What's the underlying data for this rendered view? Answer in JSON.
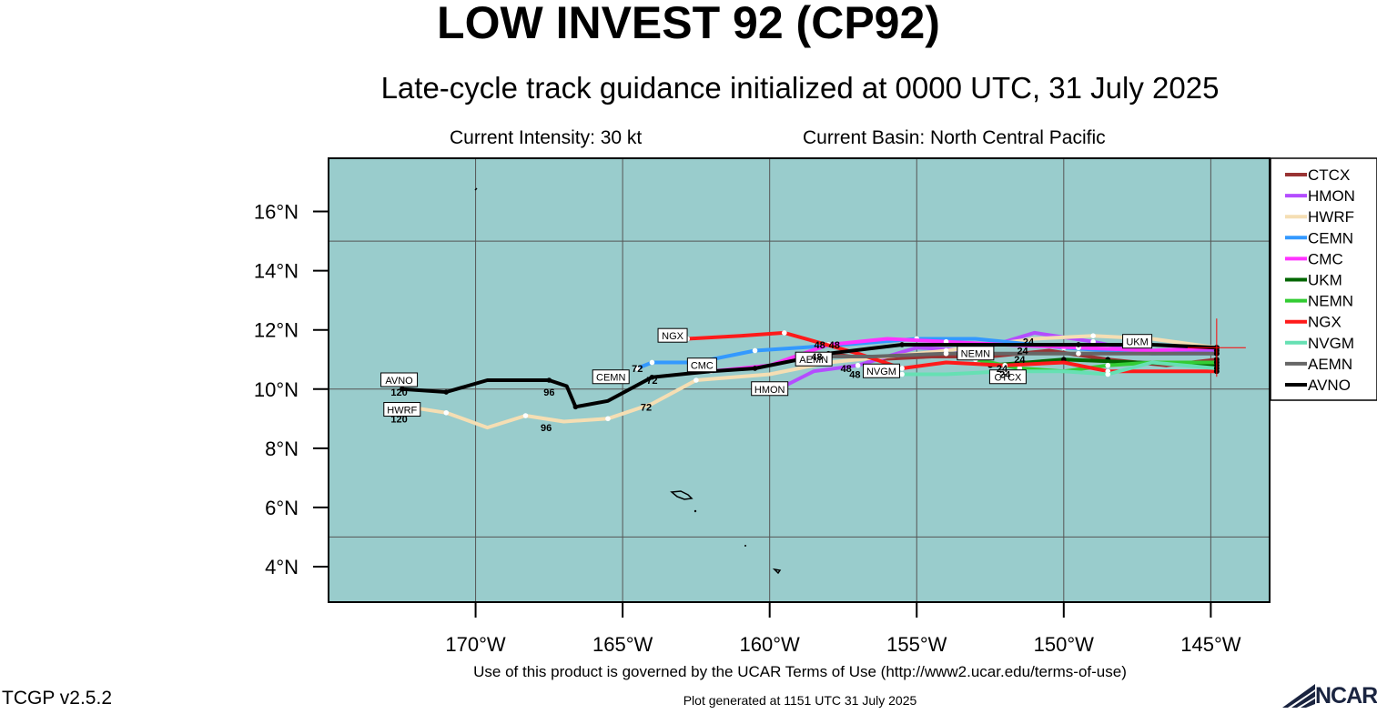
{
  "header": {
    "title": "LOW INVEST 92 (CP92)",
    "subtitle": "Late-cycle track guidance initialized at 0000 UTC, 31 July 2025",
    "intensity": "Current Intensity: 30 kt",
    "basin": "Current Basin: North Central Pacific"
  },
  "footer": {
    "terms": "Use of this product is governed by the UCAR Terms of Use (http://www2.ucar.edu/terms-of-use)",
    "version": "TCGP v2.5.2",
    "generated": "Plot generated at 1151 UTC   31 July 2025",
    "logo_text": "NCAR"
  },
  "chart_data": {
    "type": "line",
    "xlim": [
      -175,
      -143
    ],
    "ylim": [
      2.8,
      17.8
    ],
    "x_ticks": [
      -170,
      -165,
      -160,
      -155,
      -150,
      -145
    ],
    "x_tick_labels": [
      "170°W",
      "165°W",
      "160°W",
      "155°W",
      "150°W",
      "145°W"
    ],
    "y_ticks": [
      4,
      6,
      8,
      10,
      12,
      14,
      16
    ],
    "y_tick_labels": [
      "4°N",
      "6°N",
      "8°N",
      "10°N",
      "12°N",
      "14°N",
      "16°N"
    ],
    "grid": true,
    "legend_position": "right",
    "ocean_color": "#99cccc",
    "initial_position": {
      "lon": -144.8,
      "lat": 11.4
    },
    "series": [
      {
        "name": "CTCX",
        "color": "#993333",
        "lon": [
          -144.8,
          -146.5,
          -148.5,
          -150.5,
          -152.5,
          -154.5,
          -156.5,
          -158.0
        ],
        "lat": [
          11.0,
          10.8,
          11.0,
          11.3,
          11.1,
          11.1,
          11.0,
          11.2
        ]
      },
      {
        "name": "HMON",
        "color": "#b44dff",
        "lon": [
          -144.8,
          -147.0,
          -149.0,
          -151.0,
          -153.0,
          -155.0,
          -157.0,
          -158.5,
          -159.5
        ],
        "lat": [
          11.3,
          11.2,
          11.6,
          11.9,
          11.3,
          11.4,
          10.8,
          10.6,
          10.1
        ]
      },
      {
        "name": "HWRF",
        "color": "#f5deb3",
        "lon": [
          -144.8,
          -147.0,
          -149.0,
          -151.0,
          -154.0,
          -156.0,
          -158.0,
          -160.0,
          -162.5,
          -164.0,
          -165.5,
          -167.0,
          -168.3,
          -169.6,
          -171.0,
          -172.3
        ],
        "lat": [
          11.4,
          11.7,
          11.8,
          11.7,
          11.3,
          11.1,
          10.9,
          10.5,
          10.3,
          9.5,
          9.0,
          8.9,
          9.1,
          8.7,
          9.2,
          9.4
        ]
      },
      {
        "name": "CEMN",
        "color": "#3399ff",
        "lon": [
          -144.8,
          -147.0,
          -150.0,
          -153.0,
          -155.0,
          -157.5,
          -160.5,
          -162.5,
          -164.0,
          -164.5
        ],
        "lat": [
          11.2,
          11.2,
          11.4,
          11.7,
          11.7,
          11.5,
          11.3,
          10.9,
          10.9,
          10.7
        ]
      },
      {
        "name": "CMC",
        "color": "#ff33ff",
        "lon": [
          -144.8,
          -147.0,
          -149.5,
          -152.0,
          -154.0,
          -156.0,
          -158.0,
          -160.0,
          -162.0
        ],
        "lat": [
          11.4,
          11.3,
          11.4,
          11.5,
          11.6,
          11.7,
          11.5,
          10.8,
          10.6
        ]
      },
      {
        "name": "UKM",
        "color": "#006600",
        "lon": [
          -144.8,
          -147.5,
          -150.0,
          -152.5
        ],
        "lat": [
          10.8,
          10.9,
          11.0,
          10.8
        ]
      },
      {
        "name": "NEMN",
        "color": "#33cc33",
        "lon": [
          -144.8,
          -147.0,
          -148.5,
          -150.0,
          -151.5,
          -153.0
        ],
        "lat": [
          10.9,
          10.9,
          10.8,
          10.6,
          10.7,
          11.0
        ]
      },
      {
        "name": "NGX",
        "color": "#ff1a1a",
        "lon": [
          -144.8,
          -147.0,
          -148.5,
          -150.0,
          -152.0,
          -154.0,
          -155.5,
          -157.0,
          -159.5,
          -161.0,
          -162.8
        ],
        "lat": [
          10.6,
          10.6,
          10.6,
          10.9,
          10.8,
          10.9,
          10.7,
          11.2,
          11.9,
          11.8,
          11.7
        ]
      },
      {
        "name": "NVGM",
        "color": "#66e0b3",
        "lon": [
          -144.8,
          -147.0,
          -148.5,
          -150.0,
          -152.0,
          -154.0,
          -155.5,
          -156.5
        ],
        "lat": [
          10.7,
          10.9,
          10.5,
          10.6,
          10.6,
          10.5,
          10.5,
          10.6
        ]
      },
      {
        "name": "AEMN",
        "color": "#666666",
        "lon": [
          -144.8,
          -147.0,
          -149.5,
          -152.0,
          -154.0,
          -156.5,
          -158.5
        ],
        "lat": [
          11.2,
          11.2,
          11.2,
          11.2,
          11.2,
          11.1,
          11.1
        ]
      },
      {
        "name": "AVNO",
        "color": "#000000",
        "lon": [
          -144.8,
          -147.0,
          -149.5,
          -152.0,
          -155.5,
          -158.0,
          -160.5,
          -162.0,
          -164.0,
          -165.5,
          -166.6,
          -166.9,
          -167.5,
          -169.6,
          -171.0,
          -172.5
        ],
        "lat": [
          11.4,
          11.5,
          11.5,
          11.5,
          11.5,
          11.2,
          10.7,
          10.6,
          10.4,
          9.6,
          9.4,
          10.1,
          10.3,
          10.3,
          9.9,
          10.0
        ]
      }
    ],
    "storm_tags": [
      {
        "text": "NGX",
        "lon": -163.3,
        "lat": 11.8
      },
      {
        "text": "UKM",
        "lon": -147.5,
        "lat": 11.6
      },
      {
        "text": "NEMN",
        "lon": -153.0,
        "lat": 11.2
      },
      {
        "text": "AEMN",
        "lon": -158.5,
        "lat": 11.0
      },
      {
        "text": "CMC",
        "lon": -162.3,
        "lat": 10.8
      },
      {
        "text": "CEMN",
        "lon": -165.4,
        "lat": 10.4
      },
      {
        "text": "HMON",
        "lon": -160.0,
        "lat": 10.0
      },
      {
        "text": "NVGM",
        "lon": -156.2,
        "lat": 10.6
      },
      {
        "text": "CTCX",
        "lon": -151.9,
        "lat": 10.4
      },
      {
        "text": "AVNO",
        "lon": -172.6,
        "lat": 10.3
      },
      {
        "text": "HWRF",
        "lon": -172.5,
        "lat": 9.3
      }
    ],
    "hour_labels": [
      {
        "text": "120",
        "lon": -172.6,
        "lat": 9.9
      },
      {
        "text": "120",
        "lon": -172.6,
        "lat": 9.0
      },
      {
        "text": "96",
        "lon": -167.5,
        "lat": 9.9
      },
      {
        "text": "96",
        "lon": -167.6,
        "lat": 8.7
      },
      {
        "text": "72",
        "lon": -164.5,
        "lat": 10.7
      },
      {
        "text": "72",
        "lon": -164.0,
        "lat": 10.3
      },
      {
        "text": "72",
        "lon": -164.2,
        "lat": 9.4
      },
      {
        "text": "48",
        "lon": -158.3,
        "lat": 11.5
      },
      {
        "text": "48",
        "lon": -157.8,
        "lat": 11.5
      },
      {
        "text": "48",
        "lon": -158.4,
        "lat": 11.1
      },
      {
        "text": "48",
        "lon": -157.4,
        "lat": 10.7
      },
      {
        "text": "48",
        "lon": -157.1,
        "lat": 10.5
      },
      {
        "text": "24",
        "lon": -151.2,
        "lat": 11.6
      },
      {
        "text": "24",
        "lon": -151.4,
        "lat": 11.3
      },
      {
        "text": "24",
        "lon": -151.5,
        "lat": 11.0
      },
      {
        "text": "24",
        "lon": -152.1,
        "lat": 10.7
      },
      {
        "text": "24",
        "lon": -152.0,
        "lat": 10.5
      }
    ],
    "legend": [
      {
        "name": "CTCX",
        "color": "#993333"
      },
      {
        "name": "HMON",
        "color": "#b44dff"
      },
      {
        "name": "HWRF",
        "color": "#f5deb3"
      },
      {
        "name": "CEMN",
        "color": "#3399ff"
      },
      {
        "name": "CMC",
        "color": "#ff33ff"
      },
      {
        "name": "UKM",
        "color": "#006600"
      },
      {
        "name": "NEMN",
        "color": "#33cc33"
      },
      {
        "name": "NGX",
        "color": "#ff1a1a"
      },
      {
        "name": "NVGM",
        "color": "#66e0b3"
      },
      {
        "name": "AEMN",
        "color": "#666666"
      },
      {
        "name": "AVNO",
        "color": "#000000"
      }
    ]
  }
}
